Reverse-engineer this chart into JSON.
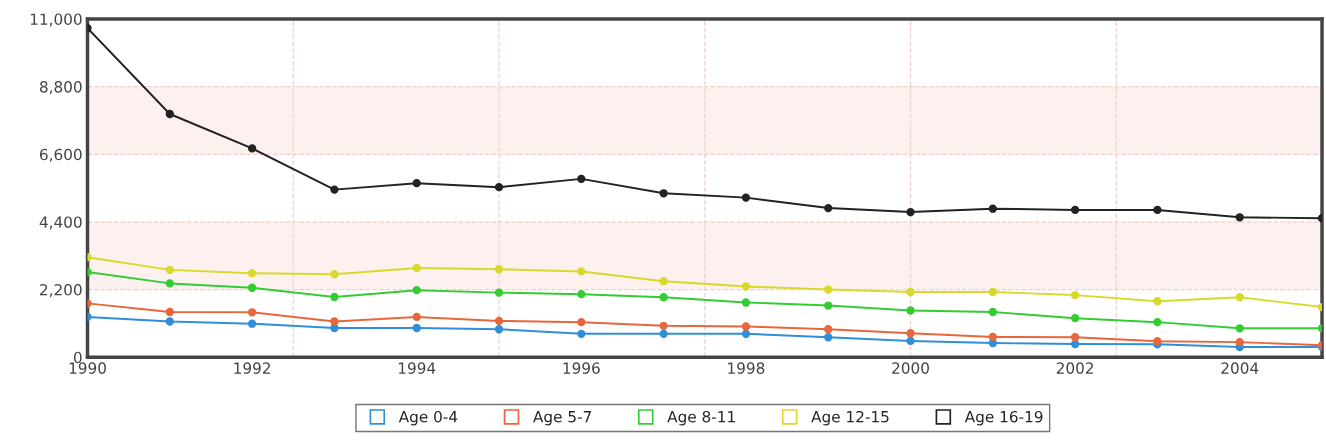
{
  "chart_data": {
    "type": "line",
    "x": [
      1990,
      1991,
      1992,
      1993,
      1994,
      1995,
      1996,
      1997,
      1998,
      1999,
      2000,
      2001,
      2002,
      2003,
      2004,
      2005
    ],
    "series": [
      {
        "name": "Age 0-4",
        "color": "#2f8fd8",
        "values": [
          1310,
          1160,
          1090,
          950,
          950,
          910,
          760,
          760,
          760,
          650,
          530,
          460,
          430,
          420,
          330,
          330
        ]
      },
      {
        "name": "Age 5-7",
        "color": "#e8663c",
        "values": [
          1750,
          1470,
          1460,
          1160,
          1310,
          1180,
          1140,
          1020,
          1000,
          910,
          780,
          660,
          650,
          520,
          490,
          390
        ]
      },
      {
        "name": "Age 8-11",
        "color": "#33cc33",
        "values": [
          2770,
          2400,
          2260,
          1960,
          2180,
          2100,
          2050,
          1950,
          1780,
          1680,
          1520,
          1470,
          1270,
          1140,
          940,
          940
        ]
      },
      {
        "name": "Age 12-15",
        "color": "#d9d92b",
        "values": [
          3250,
          2840,
          2730,
          2700,
          2900,
          2860,
          2790,
          2470,
          2300,
          2200,
          2120,
          2120,
          2020,
          1820,
          1950,
          1630
        ]
      },
      {
        "name": "Age 16-19",
        "color": "#222222",
        "values": [
          10700,
          7910,
          6790,
          5450,
          5660,
          5530,
          5800,
          5330,
          5190,
          4850,
          4720,
          4830,
          4790,
          4790,
          4550,
          4520
        ]
      }
    ],
    "xlim": [
      1990,
      2005
    ],
    "xticks": [
      1990,
      1992,
      1994,
      1996,
      1998,
      2000,
      2002,
      2004
    ],
    "ylim": [
      0,
      11000
    ],
    "yticks": [
      {
        "value": 0,
        "label": "0"
      },
      {
        "value": 2200,
        "label": "2,200"
      },
      {
        "value": 4400,
        "label": "4,400"
      },
      {
        "value": 6600,
        "label": "6,600"
      },
      {
        "value": 8800,
        "label": "8,800"
      },
      {
        "value": 11000,
        "label": "11,000"
      }
    ],
    "bands": [
      {
        "axis": "y",
        "from": 2200,
        "to": 4400,
        "color": "#fcf1ef"
      },
      {
        "axis": "y",
        "from": 6600,
        "to": 8800,
        "color": "#fcf1ef"
      }
    ],
    "ref_lines": [
      {
        "axis": "x",
        "value": 1992.5,
        "color": "#f0d0cc",
        "line_style": "dashed"
      },
      {
        "axis": "x",
        "value": 1995,
        "color": "#f0d0cc",
        "line_style": "dashed"
      },
      {
        "axis": "x",
        "value": 1997.5,
        "color": "#f0d0cc",
        "line_style": "dashed"
      },
      {
        "axis": "x",
        "value": 2000,
        "color": "#f0d0cc",
        "line_style": "dashed"
      },
      {
        "axis": "x",
        "value": 2002.5,
        "color": "#f0d0cc",
        "line_style": "dashed"
      }
    ],
    "grid": "y",
    "legend": "bottom",
    "marker": "circle",
    "line_style": "solid"
  }
}
